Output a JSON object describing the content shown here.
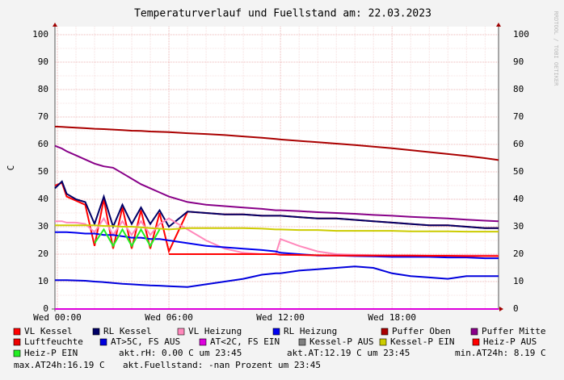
{
  "chart_data": {
    "type": "line",
    "title": "Temperaturverlauf und Fuellstand am: 22.03.2023",
    "y_label": "C",
    "watermark": "RRDTOOL / TOBI OETIKER",
    "x": [
      -0.13,
      0.25,
      0.5,
      1,
      1.5,
      2,
      2.5,
      3,
      3.5,
      4,
      4.5,
      5,
      5.5,
      6,
      7,
      8,
      9,
      10,
      11,
      11.75,
      12,
      13,
      14,
      15,
      16,
      17,
      18,
      19,
      20,
      21,
      22,
      23,
      23.73
    ],
    "xlim": [
      -0.13,
      23.73
    ],
    "xticks": [
      {
        "value": 0,
        "label": "Wed 00:00"
      },
      {
        "value": 6,
        "label": "Wed 06:00"
      },
      {
        "value": 12,
        "label": "Wed 12:00"
      },
      {
        "value": 18,
        "label": "Wed 18:00"
      }
    ],
    "ylim": [
      0,
      100
    ],
    "yticks": [
      0,
      10,
      20,
      30,
      40,
      50,
      60,
      70,
      80,
      90,
      100
    ],
    "grid": true,
    "series": [
      {
        "name": "VL Kessel",
        "color": "#ff0000",
        "values": [
          45,
          46,
          41,
          39.5,
          38,
          23,
          40,
          22,
          37,
          22,
          36,
          22,
          35,
          21,
          35.5,
          35,
          34.5,
          34.5,
          34,
          34,
          34,
          33.5,
          33,
          33,
          32.5,
          32,
          31.5,
          31,
          30.5,
          30.5,
          30,
          29.5,
          29.5
        ]
      },
      {
        "name": "RL Kessel",
        "color": "#000066",
        "values": [
          44,
          46.5,
          42,
          40,
          39,
          31,
          41,
          30,
          38,
          31,
          37,
          31,
          36,
          30,
          35.5,
          35,
          34.5,
          34.5,
          34,
          34,
          34,
          33.5,
          33,
          33,
          32.5,
          32,
          31.5,
          31,
          30.5,
          30.5,
          30,
          29.5,
          29.5
        ]
      },
      {
        "name": "VL Heizung",
        "color": "#ff88bb",
        "values": [
          32,
          32,
          31.5,
          31.5,
          31,
          28,
          33,
          27,
          32,
          27,
          32,
          27,
          31,
          33,
          29,
          25,
          22,
          20.5,
          20,
          20,
          25.5,
          23,
          21,
          20,
          19.8,
          19.6,
          19.5,
          19.5,
          19.5,
          19.5,
          19.5,
          19.5,
          19.5
        ]
      },
      {
        "name": "RL Heizung",
        "color": "#0000ee",
        "values": [
          28,
          28,
          28,
          27.8,
          27.5,
          27.5,
          27,
          27,
          26.5,
          26,
          26,
          25.5,
          25.5,
          25,
          24,
          23,
          22.5,
          22,
          21.5,
          21,
          20.5,
          20,
          19.5,
          19.5,
          19.3,
          19.2,
          19,
          19,
          19,
          18.8,
          18.8,
          18.5,
          18.5
        ]
      },
      {
        "name": "Puffer Oben",
        "color": "#aa0000",
        "values": [
          66.5,
          66.4,
          66.3,
          66.1,
          65.9,
          65.7,
          65.6,
          65.4,
          65.2,
          65,
          64.9,
          64.7,
          64.6,
          64.5,
          64.1,
          63.8,
          63.4,
          62.9,
          62.4,
          62,
          61.8,
          61.3,
          60.8,
          60.3,
          59.8,
          59.2,
          58.6,
          57.9,
          57.2,
          56.5,
          55.8,
          55,
          54.3
        ]
      },
      {
        "name": "Puffer Mitte",
        "color": "#880088",
        "values": [
          59.5,
          58.5,
          57.5,
          56,
          54.5,
          53,
          52,
          51.5,
          49.5,
          47.5,
          45.5,
          44,
          42.5,
          41,
          39,
          38,
          37.5,
          37,
          36.5,
          36,
          36,
          35.7,
          35.3,
          35,
          34.7,
          34.3,
          34,
          33.6,
          33.3,
          33,
          32.6,
          32.2,
          32
        ]
      },
      {
        "name": "Luftfeuchte",
        "color": "#ee0000",
        "values": [
          null,
          null,
          null,
          null,
          null,
          null,
          null,
          null,
          null,
          null,
          null,
          null,
          null,
          null,
          null,
          null,
          null,
          null,
          null,
          null,
          null,
          null,
          null,
          null,
          null,
          null,
          null,
          null,
          null,
          null,
          null,
          null,
          null
        ]
      },
      {
        "name": "AT>5C, FS AUS",
        "color": "#0000dd",
        "values": [
          10.5,
          10.5,
          10.5,
          10.4,
          10.3,
          10,
          9.8,
          9.5,
          9.2,
          9,
          8.8,
          8.6,
          8.5,
          8.3,
          8,
          9,
          10,
          11,
          12.5,
          13,
          13,
          14,
          14.5,
          15,
          15.5,
          15,
          13,
          12,
          11.5,
          11,
          12,
          12,
          12
        ]
      },
      {
        "name": "AT<2C, FS EIN",
        "color": "#dd00dd",
        "values": [
          0,
          0,
          0,
          0,
          0,
          0,
          0,
          0,
          0,
          0,
          0,
          0,
          0,
          0,
          0,
          0,
          0,
          0,
          0,
          0,
          0,
          0,
          0,
          0,
          0,
          0,
          0,
          0,
          0,
          0,
          0,
          0,
          0
        ]
      },
      {
        "name": "Kessel-P AUS",
        "color": "#808080",
        "values": [
          null,
          null,
          null,
          null,
          null,
          null,
          null,
          null,
          null,
          null,
          null,
          null,
          null,
          null,
          null,
          null,
          null,
          null,
          null,
          null,
          null,
          null,
          null,
          null,
          null,
          null,
          null,
          null,
          null,
          null,
          null,
          null,
          null
        ]
      },
      {
        "name": "Kessel-P EIN",
        "color": "#cccc00",
        "values": [
          30.5,
          30.5,
          30.5,
          30.5,
          30.5,
          30.5,
          30.3,
          30.2,
          30,
          30,
          29.8,
          29.5,
          29.3,
          29,
          29.5,
          29.5,
          29.5,
          29.5,
          29.3,
          29,
          29,
          28.8,
          28.8,
          28.5,
          28.5,
          28.5,
          28.5,
          28.3,
          28.3,
          28.3,
          28.2,
          28.2,
          28.2
        ]
      },
      {
        "name": "Heiz-P AUS",
        "color": "#ff0000",
        "values": [
          null,
          null,
          null,
          null,
          null,
          null,
          null,
          null,
          null,
          null,
          null,
          null,
          null,
          20,
          20,
          20,
          20,
          20,
          20,
          20,
          19.8,
          19.7,
          19.6,
          19.5,
          19.5,
          19.5,
          19.5,
          19.5,
          19.4,
          19.4,
          19.3,
          19.3,
          19.3
        ]
      },
      {
        "name": "Heiz-P EIN",
        "color": "#22ee22",
        "values": [
          null,
          null,
          null,
          null,
          null,
          24,
          29,
          23,
          29,
          23,
          29,
          23,
          29,
          null,
          null,
          null,
          null,
          null,
          null,
          null,
          null,
          null,
          null,
          null,
          null,
          null,
          null,
          null,
          null,
          null,
          null,
          null,
          null
        ]
      }
    ],
    "stats": [
      "akt.rH: 0.00 C um 23:45",
      "akt.AT:12.19 C um 23:45",
      "min.AT24h: 8.19 C",
      "max.AT24h:16.19 C",
      "akt.Fuellstand: -nan Prozent um 23:45"
    ]
  }
}
